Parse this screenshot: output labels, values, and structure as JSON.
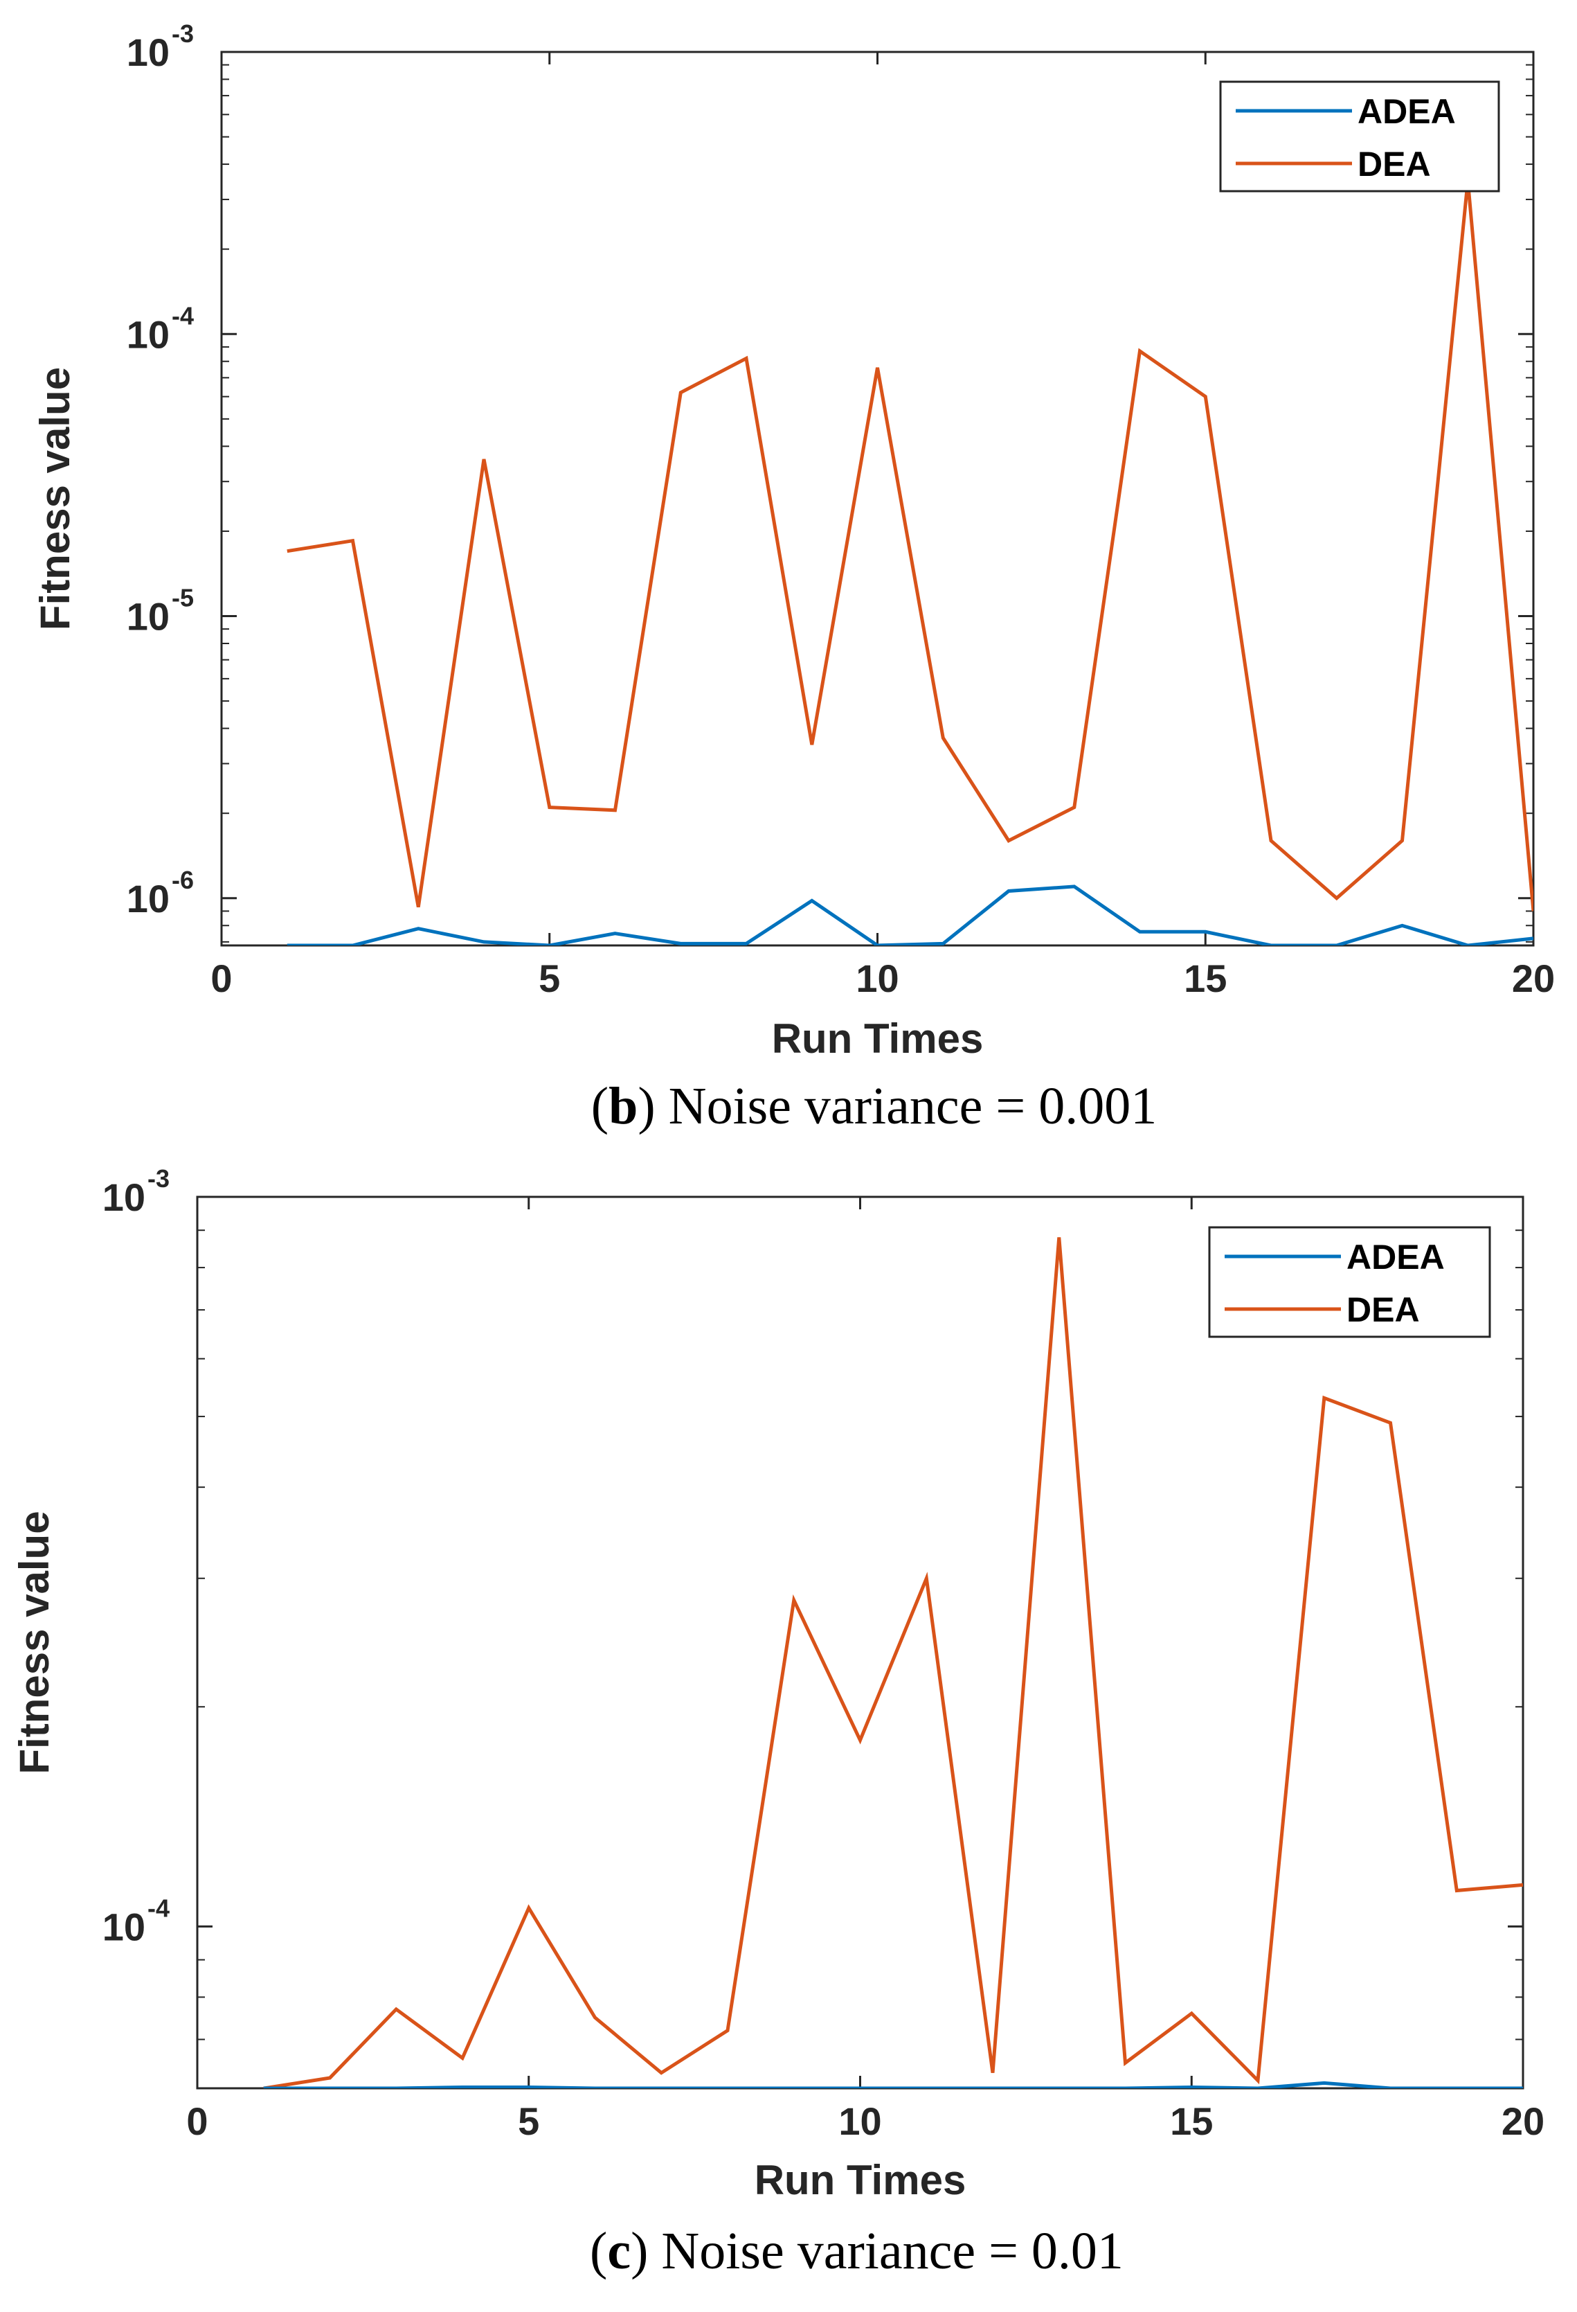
{
  "chart_data": [
    {
      "type": "line",
      "caption": {
        "letter": "b",
        "text": "Noise variance = 0.001"
      },
      "xlabel": "Run Times",
      "ylabel": "Fitness value",
      "yscale": "log",
      "xlim": [
        0,
        20
      ],
      "ylim": [
        6.8e-07,
        0.001
      ],
      "xticks": [
        0,
        5,
        10,
        15,
        20
      ],
      "yticks": [
        {
          "value": 1e-06,
          "base": "10",
          "exp": "-6"
        },
        {
          "value": 1e-05,
          "base": "10",
          "exp": "-5"
        },
        {
          "value": 0.0001,
          "base": "10",
          "exp": "-4"
        },
        {
          "value": 0.001,
          "base": "10",
          "exp": "-3"
        }
      ],
      "legend": {
        "position": "top-right"
      },
      "x": [
        1,
        2,
        3,
        4,
        5,
        6,
        7,
        8,
        9,
        10,
        11,
        12,
        13,
        14,
        15,
        16,
        17,
        18,
        19,
        20
      ],
      "series": [
        {
          "name": "ADEA",
          "color": "#0072BD",
          "values": [
            6.8e-07,
            6.8e-07,
            7.8e-07,
            7e-07,
            6.8e-07,
            7.5e-07,
            6.9e-07,
            6.9e-07,
            9.8e-07,
            6.8e-07,
            6.9e-07,
            1.06e-06,
            1.1e-06,
            7.6e-07,
            7.6e-07,
            6.8e-07,
            6.8e-07,
            8e-07,
            6.8e-07,
            7.2e-07
          ]
        },
        {
          "name": "DEA",
          "color": "#D95319",
          "values": [
            1.7e-05,
            1.85e-05,
            9.3e-07,
            3.6e-05,
            2.1e-06,
            2.05e-06,
            6.2e-05,
            8.2e-05,
            3.5e-06,
            7.6e-05,
            3.7e-06,
            1.6e-06,
            2.1e-06,
            8.7e-05,
            6e-05,
            1.6e-06,
            1e-06,
            1.6e-06,
            0.00035,
            9e-07
          ]
        }
      ]
    },
    {
      "type": "line",
      "caption": {
        "letter": "c",
        "text": "Noise variance = 0.01"
      },
      "xlabel": "Run Times",
      "ylabel": "Fitness value",
      "yscale": "log",
      "xlim": [
        0,
        20
      ],
      "ylim": [
        6e-05,
        0.001
      ],
      "xticks": [
        0,
        5,
        10,
        15,
        20
      ],
      "yticks": [
        {
          "value": 0.0001,
          "base": "10",
          "exp": "-4"
        },
        {
          "value": 0.001,
          "base": "10",
          "exp": "-3"
        }
      ],
      "legend": {
        "position": "top-right"
      },
      "x": [
        1,
        2,
        3,
        4,
        5,
        6,
        7,
        8,
        9,
        10,
        11,
        12,
        13,
        14,
        15,
        16,
        17,
        18,
        19,
        20
      ],
      "series": [
        {
          "name": "ADEA",
          "color": "#0072BD",
          "values": [
            6e-05,
            6e-05,
            6e-05,
            6.02e-05,
            6.02e-05,
            6e-05,
            6e-05,
            6e-05,
            6e-05,
            6e-05,
            6e-05,
            6e-05,
            6e-05,
            6e-05,
            6.02e-05,
            6e-05,
            6.1e-05,
            6e-05,
            6e-05,
            6e-05
          ]
        },
        {
          "name": "DEA",
          "color": "#D95319",
          "values": [
            6e-05,
            6.2e-05,
            7.7e-05,
            6.6e-05,
            0.000106,
            7.5e-05,
            6.3e-05,
            7.2e-05,
            0.00028,
            0.00018,
            0.0003,
            6.3e-05,
            0.00088,
            6.5e-05,
            7.6e-05,
            6.15e-05,
            0.00053,
            0.00049,
            0.000112,
            0.000114
          ]
        }
      ]
    }
  ]
}
